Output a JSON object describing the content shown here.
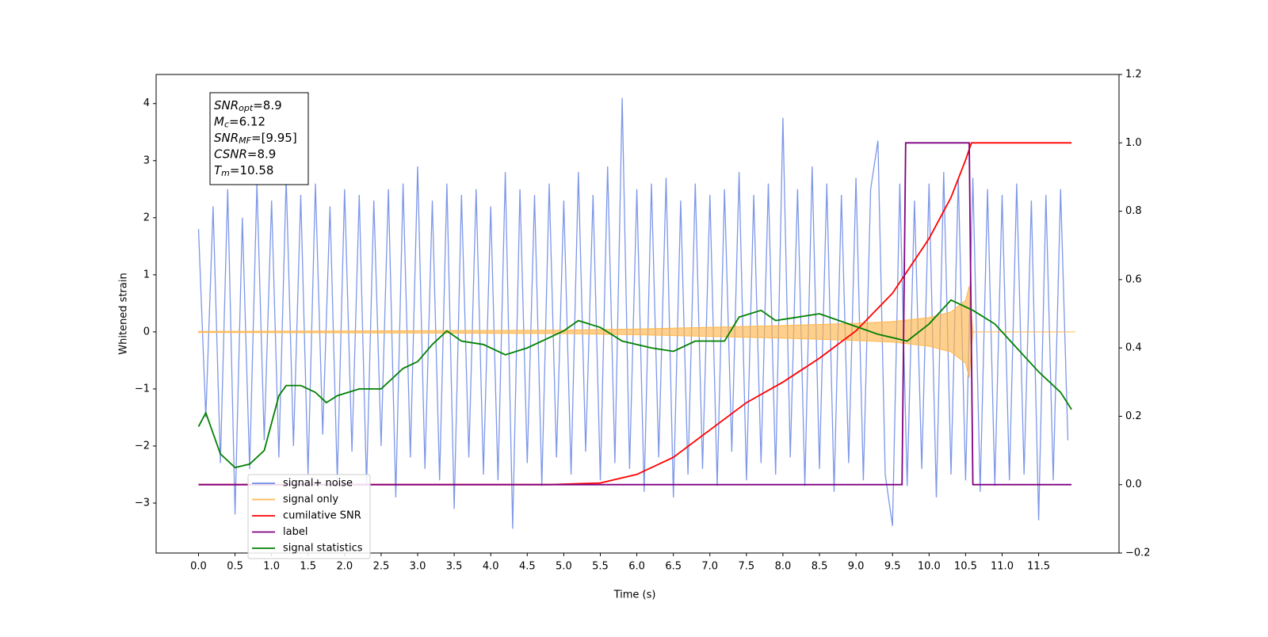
{
  "chart_data": {
    "type": "line",
    "xlabel": "Time (s)",
    "ylabel": "Whitened strain",
    "xlim": [
      -0.58,
      12.6
    ],
    "ylim": [
      -3.875,
      4.51
    ],
    "y2lim": [
      -0.2,
      1.2
    ],
    "xticks": [
      {
        "value": 0,
        "label": "0.0"
      },
      {
        "value": 0.5,
        "label": "0.5"
      },
      {
        "value": 1,
        "label": "1.0"
      },
      {
        "value": 1.5,
        "label": "1.5"
      },
      {
        "value": 2,
        "label": "2.0"
      },
      {
        "value": 2.5,
        "label": "2.5"
      },
      {
        "value": 3,
        "label": "3.0"
      },
      {
        "value": 3.5,
        "label": "3.5"
      },
      {
        "value": 4,
        "label": "4.0"
      },
      {
        "value": 4.5,
        "label": "4.5"
      },
      {
        "value": 5,
        "label": "5.0"
      },
      {
        "value": 5.5,
        "label": "5.5"
      },
      {
        "value": 6,
        "label": "6.0"
      },
      {
        "value": 6.5,
        "label": "6.5"
      },
      {
        "value": 7,
        "label": "7.0"
      },
      {
        "value": 7.5,
        "label": "7.5"
      },
      {
        "value": 8,
        "label": "8.0"
      },
      {
        "value": 8.5,
        "label": "8.5"
      },
      {
        "value": 9,
        "label": "9.0"
      },
      {
        "value": 9.5,
        "label": "9.5"
      },
      {
        "value": 10,
        "label": "10.0"
      },
      {
        "value": 10.5,
        "label": "10.5"
      },
      {
        "value": 11,
        "label": "11.0"
      },
      {
        "value": 11.5,
        "label": "11.5"
      }
    ],
    "yticks": [
      {
        "value": -3,
        "label": "−3"
      },
      {
        "value": -2,
        "label": "−2"
      },
      {
        "value": -1,
        "label": "−1"
      },
      0,
      1,
      2,
      3,
      4
    ],
    "y2ticks": [
      {
        "value": -0.2,
        "label": "−0.2"
      },
      {
        "value": 0,
        "label": "0.0"
      },
      {
        "value": 0.2,
        "label": "0.2"
      },
      {
        "value": 0.4,
        "label": "0.4"
      },
      {
        "value": 0.6,
        "label": "0.6"
      },
      {
        "value": 0.8,
        "label": "0.8"
      },
      {
        "value": 1,
        "label": "1.0"
      },
      {
        "value": 1.2,
        "label": "1.2"
      }
    ],
    "legend": "lower left",
    "annotations": [
      {
        "symbol": "SNR",
        "subscript": "opt",
        "text": "=8.9"
      },
      {
        "symbol": "M",
        "subscript": "c",
        "text": "=6.12"
      },
      {
        "symbol": "SNR",
        "subscript": "MF",
        "text": "=[9.95]"
      },
      {
        "symbol": "CSNR",
        "text": "=8.9"
      },
      {
        "symbol": "T",
        "subscript": "m",
        "text": "=10.58"
      }
    ],
    "series": [
      {
        "name": "signal+ noise",
        "color": "#6f8ce6",
        "kind": "line",
        "x": [
          0,
          0.1,
          0.2,
          0.3,
          0.4,
          0.5,
          0.6,
          0.7,
          0.8,
          0.9,
          1,
          1.1,
          1.2,
          1.3,
          1.4,
          1.5,
          1.6,
          1.7,
          1.8,
          1.9,
          2,
          2.1,
          2.2,
          2.3,
          2.4,
          2.5,
          2.6,
          2.7,
          2.8,
          2.9,
          3,
          3.1,
          3.2,
          3.3,
          3.4,
          3.5,
          3.6,
          3.7,
          3.8,
          3.9,
          4,
          4.1,
          4.2,
          4.3,
          4.4,
          4.5,
          4.6,
          4.7,
          4.8,
          4.9,
          5,
          5.1,
          5.2,
          5.3,
          5.4,
          5.5,
          5.6,
          5.7,
          5.8,
          5.9,
          6,
          6.1,
          6.2,
          6.3,
          6.4,
          6.5,
          6.6,
          6.7,
          6.8,
          6.9,
          7,
          7.1,
          7.2,
          7.3,
          7.4,
          7.5,
          7.6,
          7.7,
          7.8,
          7.9,
          8,
          8.1,
          8.2,
          8.3,
          8.4,
          8.5,
          8.6,
          8.7,
          8.8,
          8.9,
          9,
          9.1,
          9.2,
          9.3,
          9.4,
          9.5,
          9.6,
          9.7,
          9.8,
          9.9,
          10,
          10.1,
          10.2,
          10.3,
          10.4,
          10.5,
          10.6,
          10.7,
          10.8,
          10.9,
          11,
          11.1,
          11.2,
          11.3,
          11.4,
          11.5,
          11.6,
          11.7,
          11.8,
          11.9
        ],
        "values": [
          1.8,
          -1.5,
          2.2,
          -2.3,
          2.5,
          -3.2,
          2.0,
          -2.4,
          2.6,
          -1.9,
          2.3,
          -2.2,
          2.7,
          -2.0,
          2.4,
          -2.5,
          2.6,
          -1.8,
          2.2,
          -2.6,
          2.5,
          -2.1,
          2.4,
          -2.7,
          2.3,
          -2.0,
          2.5,
          -2.9,
          2.6,
          -2.2,
          2.9,
          -2.4,
          2.3,
          -2.6,
          2.6,
          -3.1,
          2.4,
          -2.2,
          2.5,
          -2.5,
          2.2,
          -2.6,
          2.8,
          -3.45,
          2.5,
          -2.3,
          2.4,
          -2.7,
          2.6,
          -2.2,
          2.3,
          -2.5,
          2.8,
          -2.1,
          2.4,
          -2.6,
          2.9,
          -2.3,
          4.1,
          -2.4,
          2.5,
          -2.8,
          2.6,
          -2.2,
          2.7,
          -2.9,
          2.3,
          -2.5,
          2.6,
          -2.4,
          2.4,
          -2.7,
          2.5,
          -2.1,
          2.8,
          -2.6,
          2.4,
          -2.3,
          2.6,
          -2.5,
          3.75,
          -2.2,
          2.5,
          -2.7,
          2.9,
          -2.4,
          2.6,
          -2.8,
          2.4,
          -2.3,
          2.7,
          -2.6,
          2.5,
          3.35,
          -2.5,
          -3.4,
          2.6,
          -2.7,
          2.3,
          -2.4,
          2.6,
          -2.9,
          2.8,
          -2.5,
          2.7,
          -2.6,
          2.7,
          -2.8,
          2.5,
          -2.7,
          2.4,
          -2.6,
          2.6,
          -2.5,
          2.3,
          -3.3,
          2.4,
          -2.6,
          2.5,
          -1.9
        ]
      },
      {
        "name": "signal only",
        "color": "#ffb74d",
        "kind": "envelope",
        "x": [
          0,
          3,
          5,
          6,
          7,
          8,
          9,
          9.5,
          10,
          10.3,
          10.5,
          10.55,
          10.6,
          12
        ],
        "values": [
          0.01,
          0.02,
          0.03,
          0.05,
          0.08,
          0.11,
          0.15,
          0.18,
          0.25,
          0.35,
          0.55,
          0.8,
          0,
          0
        ]
      },
      {
        "name": "cumilative SNR",
        "color": "#ff0000",
        "kind": "line",
        "axis": "y2",
        "x": [
          0,
          4.8,
          5.5,
          6,
          6.5,
          7,
          7.5,
          8,
          8.5,
          9,
          9.5,
          10,
          10.3,
          10.5,
          10.58,
          11.95
        ],
        "values": [
          0,
          0,
          0.005,
          0.03,
          0.08,
          0.16,
          0.24,
          0.3,
          0.37,
          0.45,
          0.56,
          0.72,
          0.84,
          0.95,
          1,
          1
        ]
      },
      {
        "name": "label",
        "color": "#800080",
        "kind": "line",
        "axis": "y2",
        "x": [
          0,
          9.63,
          9.68,
          10.55,
          10.6,
          11.95
        ],
        "values": [
          0,
          0,
          1,
          1,
          0,
          0
        ]
      },
      {
        "name": "signal statistics",
        "color": "#008000",
        "kind": "line",
        "axis": "y2",
        "x": [
          0,
          0.1,
          0.3,
          0.5,
          0.7,
          0.9,
          1.1,
          1.2,
          1.4,
          1.6,
          1.75,
          1.9,
          2.2,
          2.5,
          2.8,
          3,
          3.2,
          3.4,
          3.6,
          3.9,
          4.2,
          4.5,
          4.8,
          5,
          5.2,
          5.5,
          5.8,
          6.2,
          6.5,
          6.8,
          7.2,
          7.4,
          7.7,
          7.9,
          8.2,
          8.5,
          8.9,
          9.3,
          9.7,
          10,
          10.3,
          10.6,
          10.9,
          11.2,
          11.5,
          11.8,
          11.95
        ],
        "values": [
          0.17,
          0.21,
          0.09,
          0.05,
          0.06,
          0.1,
          0.26,
          0.29,
          0.29,
          0.27,
          0.24,
          0.26,
          0.28,
          0.28,
          0.34,
          0.36,
          0.41,
          0.45,
          0.42,
          0.41,
          0.38,
          0.4,
          0.43,
          0.45,
          0.48,
          0.46,
          0.42,
          0.4,
          0.39,
          0.42,
          0.42,
          0.49,
          0.51,
          0.48,
          0.49,
          0.5,
          0.47,
          0.44,
          0.42,
          0.47,
          0.54,
          0.51,
          0.47,
          0.4,
          0.33,
          0.27,
          0.22
        ]
      }
    ]
  }
}
